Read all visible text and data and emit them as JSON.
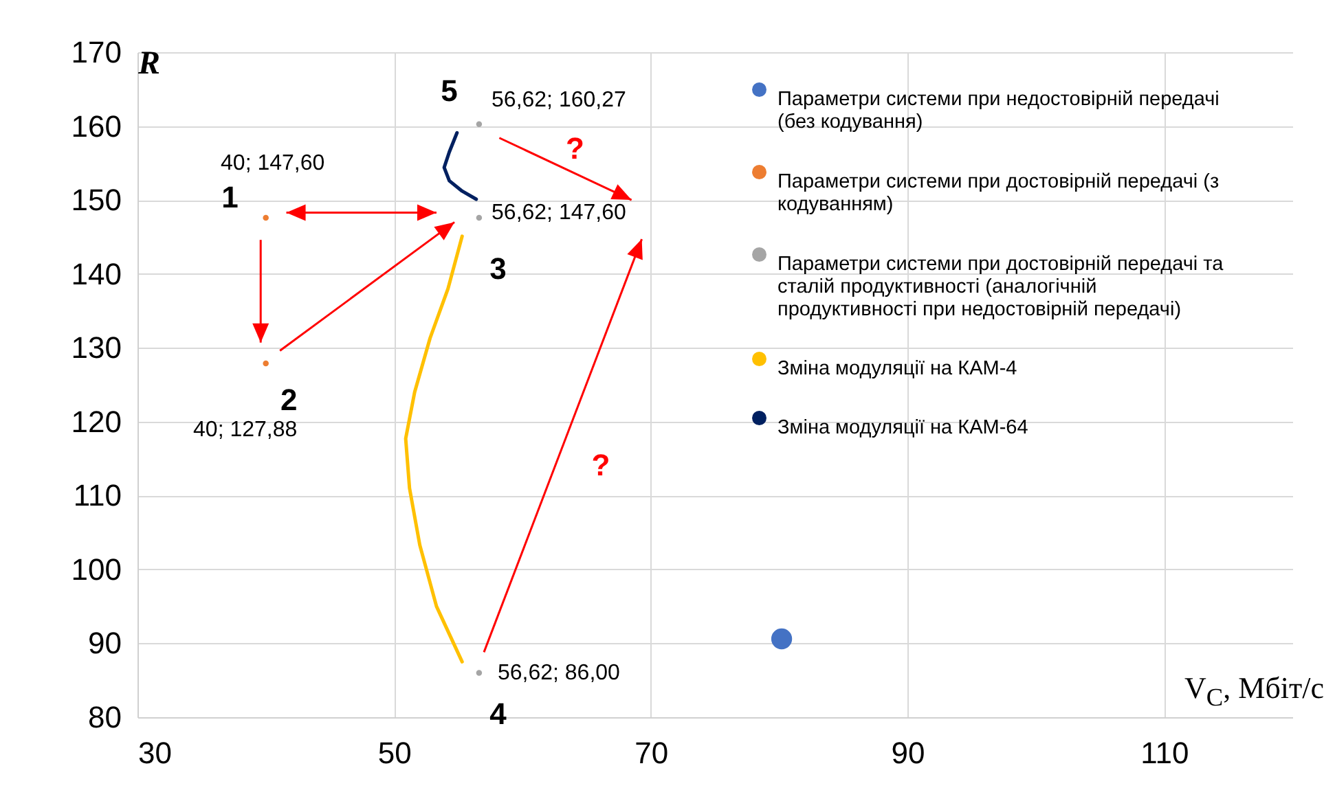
{
  "chart_data": {
    "type": "scatter",
    "xlabel": "V$_{C}$, Мбіт/с",
    "ylabel": "R",
    "xlim": [
      30,
      120
    ],
    "xticks": [
      30,
      50,
      70,
      90,
      110
    ],
    "ylim": [
      80,
      170
    ],
    "yticks": [
      80,
      90,
      100,
      110,
      120,
      130,
      140,
      150,
      160,
      170
    ],
    "grid": true,
    "legend": "top right",
    "series": [
      {
        "name": "Параметри системи при недостовірній передачі (без кодування)",
        "marker": "circle",
        "color": "#4472c4",
        "x": [
          80.2
        ],
        "values": [
          90.6
        ]
      },
      {
        "name": "Параметри системи при достовірній передачі (з кодуванням)",
        "marker": "circle",
        "color": "#ed7d31",
        "x": [
          40,
          40
        ],
        "values": [
          147.6,
          127.88
        ],
        "value_labels": [
          "40; 147,60",
          "40; 127,88"
        ]
      },
      {
        "name": "Параметри системи при достовірній передачі та сталій продуктивності (аналогічній продуктивності при недостовірній передачі)",
        "marker": "circle",
        "color": "#a5a5a5",
        "x": [
          56.62,
          56.62,
          56.62
        ],
        "values": [
          147.6,
          86,
          160.27
        ],
        "value_labels": [
          "56,62; 147,60",
          "56,62; 86,00",
          "56,62; 160,27"
        ]
      },
      {
        "name": "Зміна модуляції на КАМ-4",
        "type": "line",
        "marker": "none",
        "color": "#ffc000",
        "x": [
          55.3,
          54.2,
          52.8,
          51.6,
          50.9,
          51.2,
          52.0,
          53.3,
          55.3
        ],
        "values": [
          145.1,
          138,
          131.3,
          124,
          117.7,
          111,
          103.3,
          95,
          87.5
        ]
      },
      {
        "name": "Зміна модуляції на КАМ-64",
        "type": "line",
        "marker": "none",
        "color": "#002060",
        "x": [
          54.9,
          54.3,
          53.9,
          54.3,
          55.3,
          56.4
        ],
        "values": [
          159.1,
          156.5,
          154.4,
          152.6,
          151.2,
          150.1
        ]
      }
    ],
    "annotations": [
      "1",
      "2",
      "3",
      "4",
      "5",
      "?",
      "?"
    ]
  }
}
